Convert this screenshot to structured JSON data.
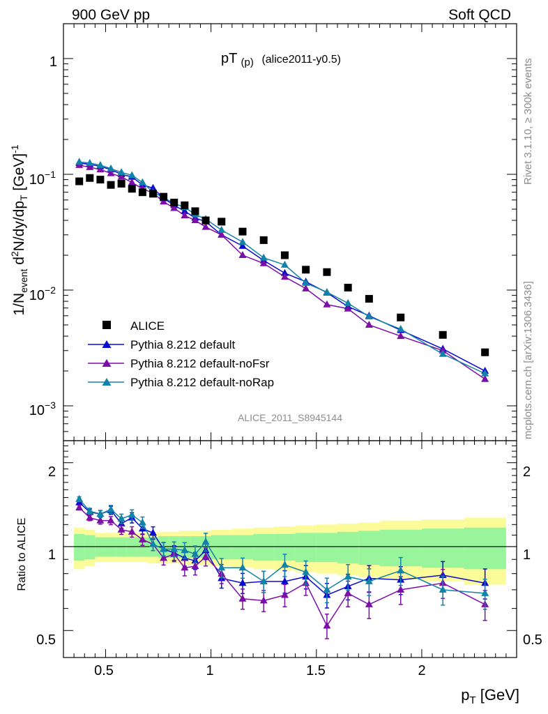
{
  "header": {
    "left": "900 GeV pp",
    "right": "Soft QCD"
  },
  "side_labels": {
    "rivet": "Rivet 3.1.10, ≥ 300k events",
    "mcplots": "mcplots.cern.ch [arXiv:1306.3436]"
  },
  "title": {
    "main": "pT",
    "sub": "(p)",
    "tag": "(alice2011-y0.5)"
  },
  "watermark": "ALICE_2011_S8945144",
  "upper_ylabel": {
    "p1": "1/N",
    "sub1": "event",
    "p2": " d",
    "sup1": "2",
    "p3": "N/dy/dp",
    "sub2": "T",
    "p4": " [GeV]",
    "sup2": "-1"
  },
  "lower_ylabel": "Ratio to ALICE",
  "xlabel": {
    "p1": "p",
    "sub1": "T",
    "p2": " [GeV]"
  },
  "upper_ticks": [
    {
      "base": "1",
      "exp": ""
    },
    {
      "base": "10",
      "exp": "−1"
    },
    {
      "base": "10",
      "exp": "−2"
    },
    {
      "base": "10",
      "exp": "−3"
    }
  ],
  "lower_ticks": [
    "2",
    "1",
    "0.5"
  ],
  "x_ticks": [
    "0.5",
    "1",
    "1.5",
    "2"
  ],
  "colors": {
    "alice": "#000000",
    "default": "#0b0bd0",
    "noFsr": "#7c0ea8",
    "noRap": "#1283a8",
    "band_inner": "#99f59b",
    "band_outer": "#fbfb99"
  },
  "chart_data": {
    "type": "scatter",
    "x_range": [
      0.3,
      2.45
    ],
    "upper_y_range": [
      0.0005,
      2.0
    ],
    "upper_y_scale": "log",
    "lower_y_range": [
      0.4,
      2.4
    ],
    "lower_y_scale": "log",
    "bins": [
      0.375,
      0.425,
      0.475,
      0.525,
      0.575,
      0.625,
      0.675,
      0.725,
      0.775,
      0.825,
      0.875,
      0.925,
      0.975,
      1.05,
      1.15,
      1.25,
      1.35,
      1.45,
      1.55,
      1.65,
      1.75,
      1.9,
      2.1,
      2.3
    ],
    "bin_edges": [
      0.35,
      0.4,
      0.45,
      0.5,
      0.55,
      0.6,
      0.65,
      0.7,
      0.75,
      0.8,
      0.85,
      0.9,
      0.95,
      1.0,
      1.1,
      1.2,
      1.3,
      1.4,
      1.5,
      1.6,
      1.7,
      1.8,
      2.0,
      2.2,
      2.4
    ],
    "data": {
      "name": "ALICE",
      "values": [
        0.087,
        0.093,
        0.09,
        0.081,
        0.083,
        0.075,
        0.07,
        0.068,
        0.064,
        0.057,
        0.054,
        0.048,
        0.04,
        0.039,
        0.032,
        0.027,
        0.02,
        0.015,
        0.0143,
        0.0105,
        0.0084,
        0.0058,
        0.0041,
        0.0029
      ]
    },
    "series": [
      {
        "name": "Pythia 8.212 default",
        "color_key": "default",
        "values": [
          0.125,
          0.122,
          0.117,
          0.11,
          0.1,
          0.095,
          0.081,
          0.076,
          0.062,
          0.054,
          0.048,
          0.042,
          0.039,
          0.03,
          0.024,
          0.018,
          0.014,
          0.0118,
          0.0095,
          0.0072,
          0.006,
          0.0045,
          0.0031,
          0.002
        ],
        "ratio": [
          1.44,
          1.33,
          1.31,
          1.35,
          1.21,
          1.27,
          1.16,
          1.12,
          0.98,
          0.95,
          0.91,
          0.89,
          0.97,
          0.77,
          0.74,
          0.75,
          0.75,
          0.78,
          0.67,
          0.72,
          0.77,
          0.76,
          0.79,
          0.74
        ]
      },
      {
        "name": "Pythia 8.212 default-noFsr",
        "color_key": "noFsr",
        "values": [
          0.12,
          0.115,
          0.11,
          0.102,
          0.095,
          0.085,
          0.075,
          0.069,
          0.058,
          0.051,
          0.044,
          0.04,
          0.035,
          0.03,
          0.02,
          0.017,
          0.013,
          0.0103,
          0.0075,
          0.0069,
          0.005,
          0.004,
          0.003,
          0.0017
        ],
        "ratio": [
          1.38,
          1.27,
          1.24,
          1.24,
          1.15,
          1.13,
          1.06,
          1.02,
          0.91,
          0.94,
          0.84,
          0.85,
          0.92,
          0.8,
          0.65,
          0.64,
          0.67,
          0.74,
          0.52,
          0.68,
          0.62,
          0.7,
          0.74,
          0.62
        ]
      },
      {
        "name": "Pythia 8.212 default-noRap",
        "color_key": "noRap",
        "values": [
          0.128,
          0.125,
          0.12,
          0.112,
          0.104,
          0.098,
          0.085,
          0.07,
          0.063,
          0.056,
          0.052,
          0.045,
          0.041,
          0.033,
          0.026,
          0.019,
          0.0165,
          0.0115,
          0.0096,
          0.0077,
          0.0059,
          0.0046,
          0.0028,
          0.0019
        ],
        "ratio": [
          1.48,
          1.34,
          1.31,
          1.36,
          1.26,
          1.3,
          1.22,
          1.02,
          0.98,
          0.98,
          0.97,
          0.94,
          1.04,
          0.84,
          0.84,
          0.75,
          0.86,
          0.81,
          0.7,
          0.78,
          0.75,
          0.82,
          0.7,
          0.68
        ]
      }
    ],
    "bands": {
      "inner": [
        0.11,
        0.1,
        0.08,
        0.08,
        0.08,
        0.08,
        0.08,
        0.08,
        0.09,
        0.09,
        0.09,
        0.09,
        0.09,
        0.1,
        0.1,
        0.11,
        0.11,
        0.12,
        0.12,
        0.13,
        0.14,
        0.15,
        0.16,
        0.17
      ],
      "outer": [
        0.17,
        0.15,
        0.12,
        0.12,
        0.12,
        0.12,
        0.12,
        0.13,
        0.13,
        0.13,
        0.14,
        0.14,
        0.14,
        0.15,
        0.16,
        0.17,
        0.18,
        0.19,
        0.2,
        0.21,
        0.22,
        0.24,
        0.25,
        0.27
      ]
    },
    "legend_position": "lower-left",
    "grid": false
  }
}
